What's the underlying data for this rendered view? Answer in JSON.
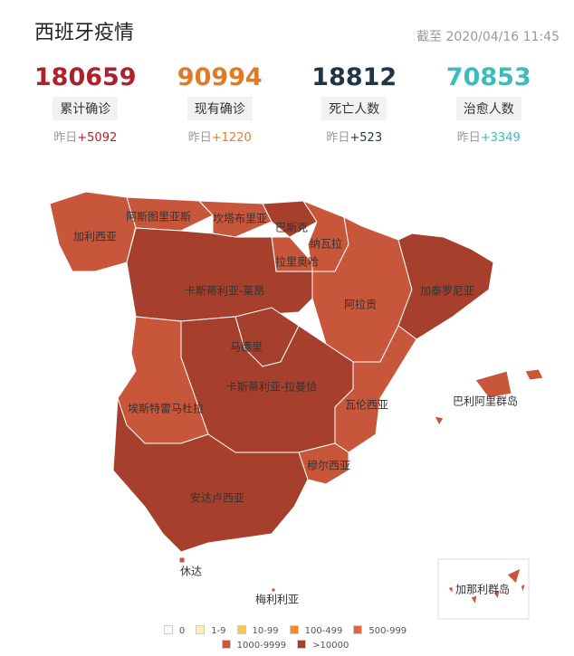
{
  "header": {
    "title": "西班牙疫情",
    "timestamp": "截至 2020/04/16 11:45"
  },
  "stats": [
    {
      "value": "180659",
      "label": "累计确诊",
      "delta_label": "昨日",
      "delta": "+5092",
      "color": "#ae212c"
    },
    {
      "value": "90994",
      "label": "现有确诊",
      "delta_label": "昨日",
      "delta": "+1220",
      "color": "#e07b25"
    },
    {
      "value": "18812",
      "label": "死亡人数",
      "delta_label": "昨日",
      "delta": "+523",
      "color": "#1f3447"
    },
    {
      "value": "70853",
      "label": "治愈人数",
      "delta_label": "昨日",
      "delta": "+3349",
      "color": "#3cbcbc"
    }
  ],
  "regions": [
    {
      "name": "加利西亚",
      "color": "#c7563b"
    },
    {
      "name": "阿斯图里亚斯",
      "color": "#c7563b"
    },
    {
      "name": "坎塔布里亚",
      "color": "#c7563b"
    },
    {
      "name": "巴斯克",
      "color": "#a6402c"
    },
    {
      "name": "纳瓦拉",
      "color": "#c7563b"
    },
    {
      "name": "拉里奥哈",
      "color": "#c7563b"
    },
    {
      "name": "卡斯蒂利亚-莱昂",
      "color": "#a6402c"
    },
    {
      "name": "阿拉贡",
      "color": "#c7563b"
    },
    {
      "name": "加泰罗尼亚",
      "color": "#a6402c"
    },
    {
      "name": "马德里",
      "color": "#a6402c"
    },
    {
      "name": "卡斯蒂利亚-拉曼恰",
      "color": "#a6402c"
    },
    {
      "name": "埃斯特雷马杜拉",
      "color": "#c7563b"
    },
    {
      "name": "瓦伦西亚",
      "color": "#c7563b"
    },
    {
      "name": "巴利阿里群岛",
      "color": "#c7563b"
    },
    {
      "name": "穆尔西亚",
      "color": "#c7563b"
    },
    {
      "name": "安达卢西亚",
      "color": "#a6402c"
    },
    {
      "name": "休达",
      "color": "#c7563b"
    },
    {
      "name": "梅利利亚",
      "color": "#c7563b"
    },
    {
      "name": "加那利群岛",
      "color": "#c7563b"
    }
  ],
  "legend": [
    {
      "label": "0",
      "color": "#ffffff"
    },
    {
      "label": "1-9",
      "color": "#ffeeb0"
    },
    {
      "label": "10-99",
      "color": "#ffc64b"
    },
    {
      "label": "100-499",
      "color": "#f58a27"
    },
    {
      "label": "500-999",
      "color": "#e2693f"
    },
    {
      "label": "1000-9999",
      "color": "#c7563b"
    },
    {
      "label": ">10000",
      "color": "#a6402c"
    }
  ]
}
